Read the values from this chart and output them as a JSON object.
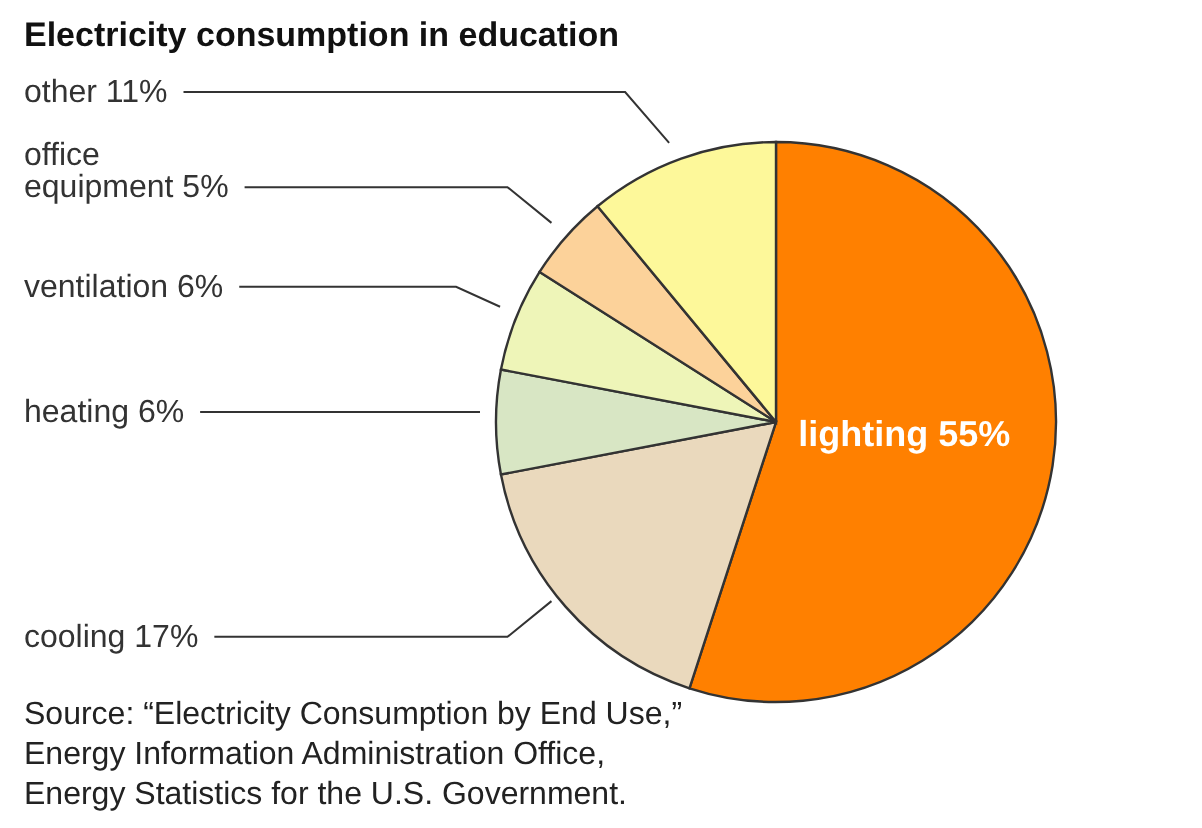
{
  "chart_data": {
    "type": "pie",
    "title": "Electricity consumption in education",
    "categories": [
      "lighting",
      "cooling",
      "heating",
      "ventilation",
      "office equipment",
      "other"
    ],
    "values": [
      55,
      17,
      6,
      6,
      5,
      11
    ],
    "value_labels": [
      "55%",
      "17%",
      "6%",
      "6%",
      "5%",
      "11%"
    ],
    "colors": [
      "#ff8000",
      "#ead9bd",
      "#d8e6c4",
      "#eef5b8",
      "#fcd29a",
      "#fdf89a"
    ],
    "annotations": [
      "Source: “Electricity Consumption by End Use,”",
      "Energy Information Administration Office,",
      "Energy Statistics for the U.S. Government."
    ]
  }
}
